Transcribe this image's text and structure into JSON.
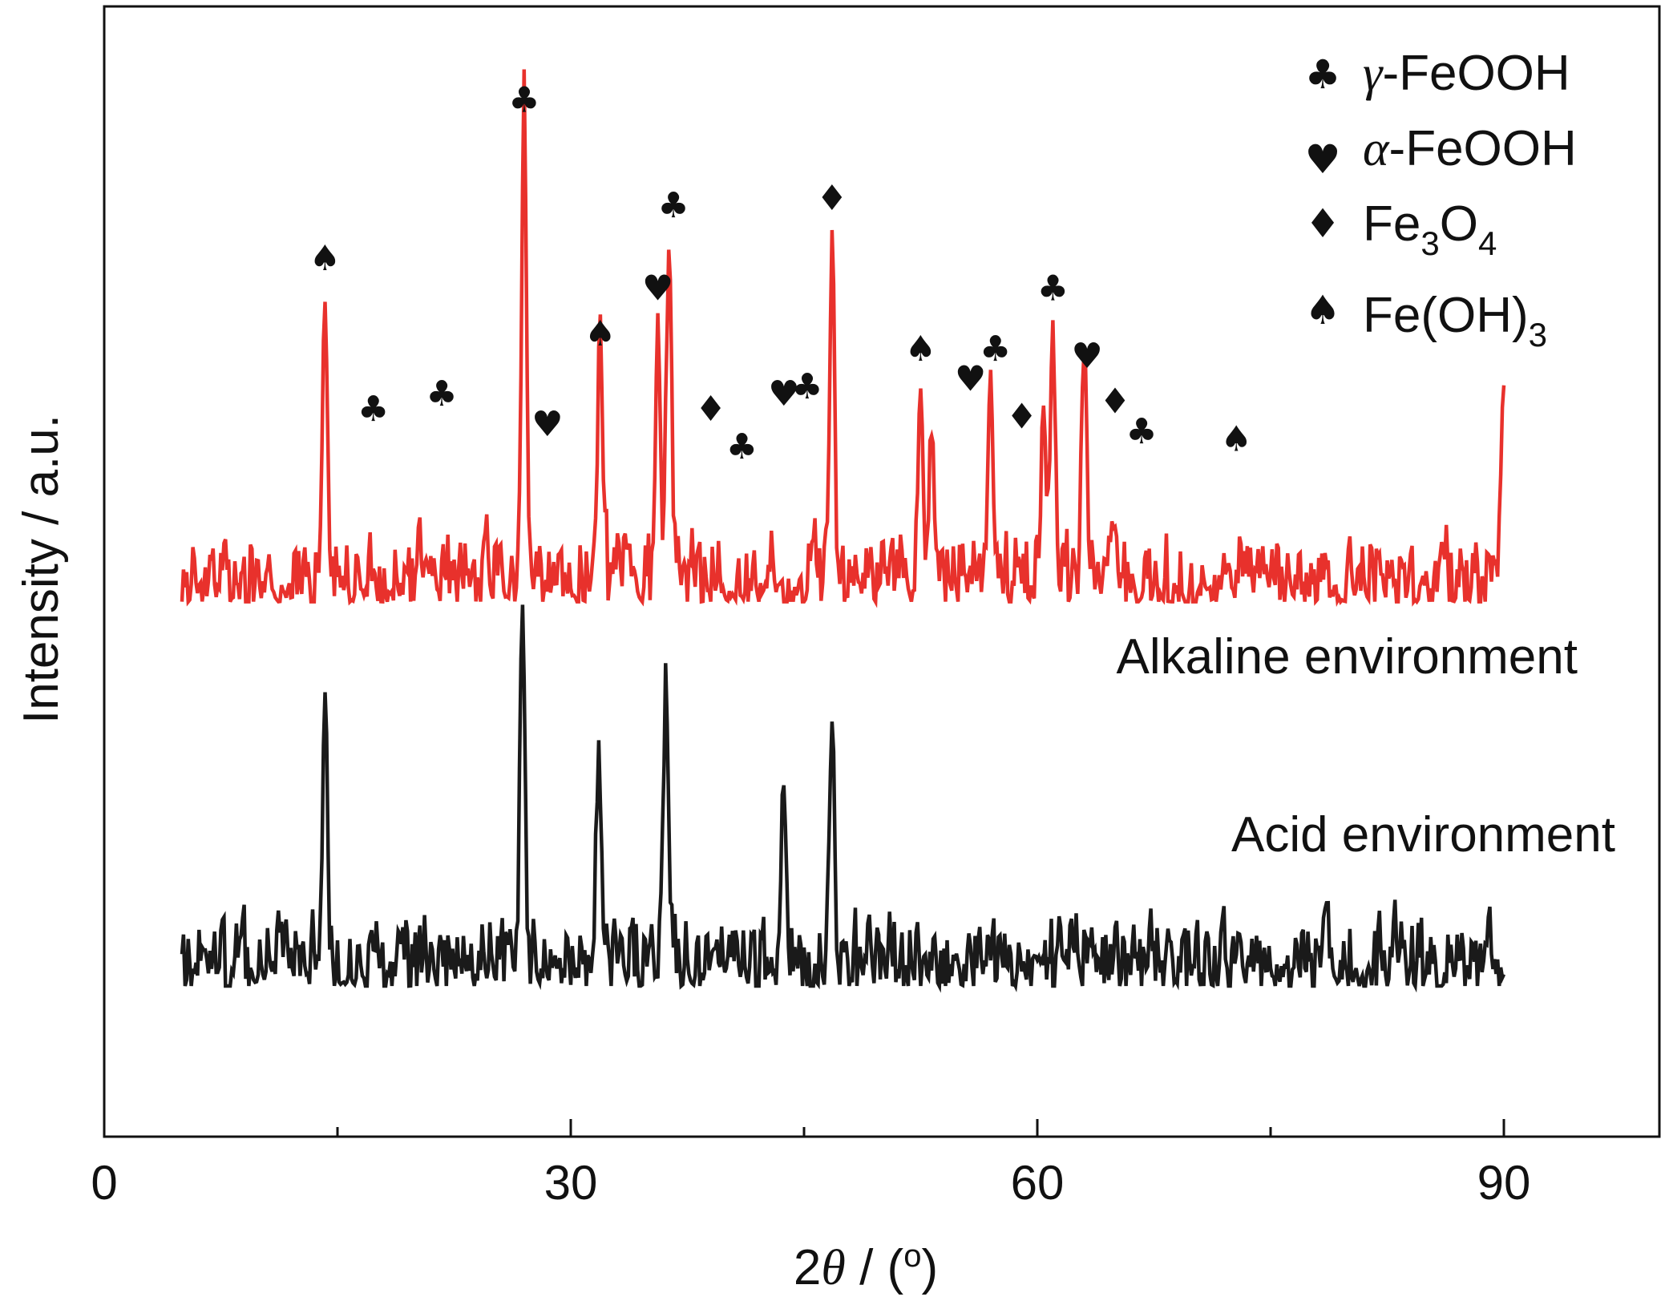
{
  "chart_data": {
    "type": "line",
    "xlabel": {
      "prefix": "2",
      "italic": "θ",
      "suffix": " / (",
      "sup": "o",
      "close": ")"
    },
    "ylabel": "Intensity / a.u.",
    "xlim": [
      0,
      100
    ],
    "x_ticks": [
      0,
      30,
      60,
      90
    ],
    "x_minor_ticks": [
      15,
      45,
      75
    ],
    "y_ticks": [],
    "grid": false,
    "legend": {
      "position": "top-right",
      "entries": [
        {
          "symbol": "♣",
          "parts": [
            {
              "t": "γ",
              "style": "italic"
            },
            {
              "t": "-FeOOH"
            }
          ]
        },
        {
          "symbol": "♥",
          "parts": [
            {
              "t": "α",
              "style": "italic"
            },
            {
              "t": "-FeOOH"
            }
          ]
        },
        {
          "symbol": "♦",
          "parts": [
            {
              "t": "Fe"
            },
            {
              "t": "3",
              "style": "sub"
            },
            {
              "t": "O"
            },
            {
              "t": "4",
              "style": "sub"
            }
          ]
        },
        {
          "symbol": "♠",
          "parts": [
            {
              "t": "Fe(OH)"
            },
            {
              "t": "3",
              "style": "sub"
            }
          ]
        }
      ]
    },
    "series": [
      {
        "name": "Alkaline environment",
        "color": "#e8312c",
        "offset": 51,
        "noise_amplitude": 14,
        "peaks": [
          {
            "x": 14.2,
            "height": 39
          },
          {
            "x": 27.0,
            "height": 61
          },
          {
            "x": 31.9,
            "height": 30
          },
          {
            "x": 35.6,
            "height": 35
          },
          {
            "x": 36.3,
            "height": 45
          },
          {
            "x": 46.8,
            "height": 45
          },
          {
            "x": 52.5,
            "height": 26
          },
          {
            "x": 53.2,
            "height": 22
          },
          {
            "x": 57.0,
            "height": 28
          },
          {
            "x": 61.0,
            "height": 35
          },
          {
            "x": 60.4,
            "height": 26
          },
          {
            "x": 63.0,
            "height": 28
          },
          {
            "x": 90.0,
            "height": 27
          }
        ]
      },
      {
        "name": "Acid environment",
        "color": "#1a1a1a",
        "offset": 0,
        "noise_amplitude": 14,
        "peaks": [
          {
            "x": 14.2,
            "height": 31
          },
          {
            "x": 26.9,
            "height": 49
          },
          {
            "x": 31.8,
            "height": 30
          },
          {
            "x": 36.1,
            "height": 36
          },
          {
            "x": 43.7,
            "height": 26
          },
          {
            "x": 46.8,
            "height": 31
          }
        ]
      }
    ],
    "phase_markers": [
      {
        "symbol": "♠",
        "x": 14.2,
        "y": 95
      },
      {
        "symbol": "♣",
        "x": 17.3,
        "y": 75
      },
      {
        "symbol": "♣",
        "x": 21.7,
        "y": 77
      },
      {
        "symbol": "♣",
        "x": 27.0,
        "y": 116
      },
      {
        "symbol": "♥",
        "x": 28.5,
        "y": 73
      },
      {
        "symbol": "♠",
        "x": 31.9,
        "y": 85
      },
      {
        "symbol": "♥",
        "x": 35.6,
        "y": 91
      },
      {
        "symbol": "♣",
        "x": 36.6,
        "y": 102
      },
      {
        "symbol": "♦",
        "x": 39.0,
        "y": 75
      },
      {
        "symbol": "♣",
        "x": 41.0,
        "y": 70
      },
      {
        "symbol": "♥",
        "x": 43.7,
        "y": 77
      },
      {
        "symbol": "♣",
        "x": 45.2,
        "y": 78
      },
      {
        "symbol": "♦",
        "x": 46.8,
        "y": 103
      },
      {
        "symbol": "♠",
        "x": 52.5,
        "y": 83
      },
      {
        "symbol": "♥",
        "x": 55.7,
        "y": 79
      },
      {
        "symbol": "♣",
        "x": 57.3,
        "y": 83
      },
      {
        "symbol": "♦",
        "x": 59.0,
        "y": 74
      },
      {
        "symbol": "♣",
        "x": 61.0,
        "y": 91
      },
      {
        "symbol": "♥",
        "x": 63.2,
        "y": 82
      },
      {
        "symbol": "♦",
        "x": 65.0,
        "y": 76
      },
      {
        "symbol": "♣",
        "x": 66.7,
        "y": 72
      },
      {
        "symbol": "♠",
        "x": 72.8,
        "y": 71
      }
    ]
  }
}
